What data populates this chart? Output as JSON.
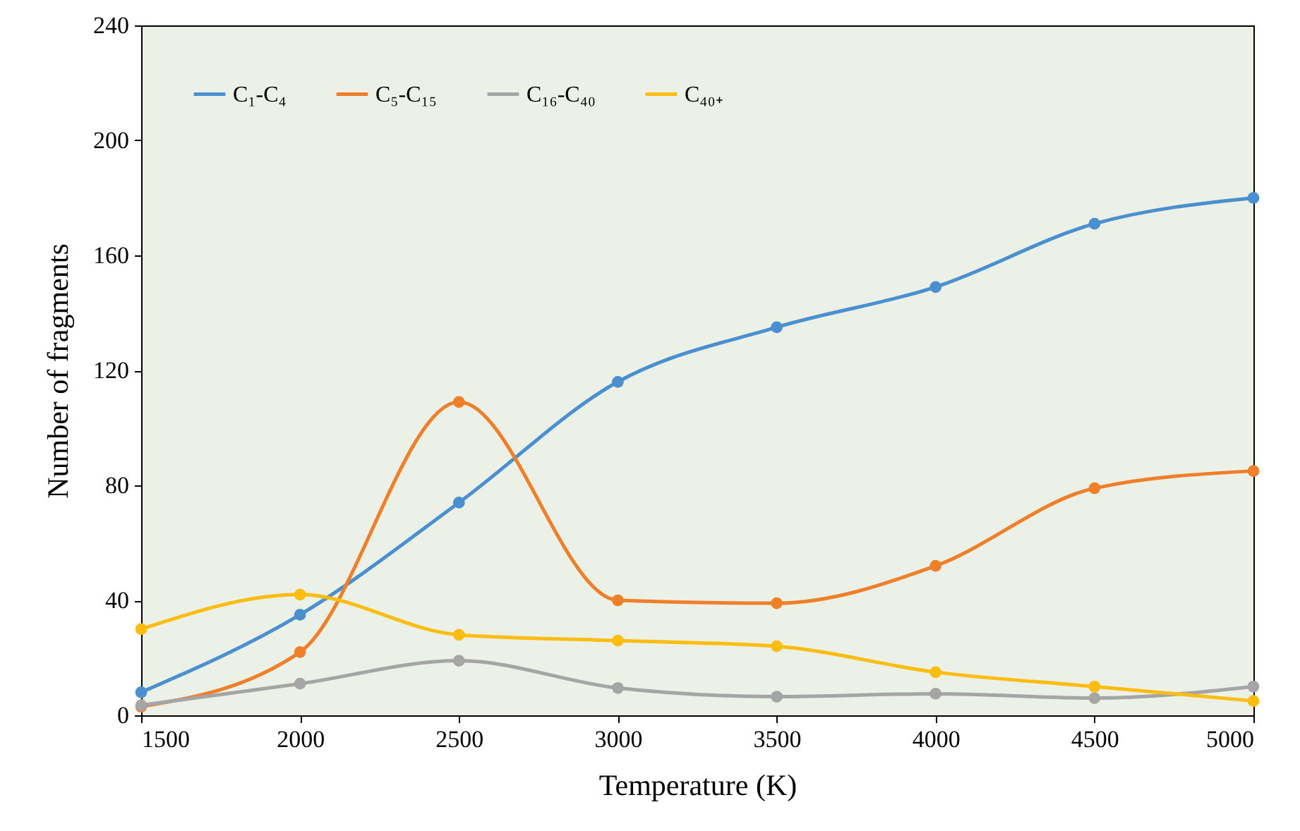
{
  "chart_data": {
    "type": "line",
    "xlabel": "Temperature (K)",
    "ylabel": "Number of fragments",
    "x": [
      1500,
      2000,
      2500,
      3000,
      3500,
      4000,
      4500,
      5000
    ],
    "series": [
      {
        "name": "C₁-C₄",
        "color": "#4a8fd0",
        "values": [
          8,
          35,
          74,
          116,
          135,
          149,
          171,
          180
        ]
      },
      {
        "name": "C₅-C₁₅",
        "color": "#f07f2a",
        "values": [
          3,
          22,
          109,
          40,
          39,
          52,
          79,
          85
        ]
      },
      {
        "name": "C₁₆-C₄₀",
        "color": "#a5a5a5",
        "values": [
          3.5,
          11,
          19,
          9.5,
          6.5,
          7.5,
          6,
          10
        ]
      },
      {
        "name": "C₄₀₊",
        "color": "#fdbd10",
        "values": [
          30,
          42,
          28,
          26,
          24,
          15,
          10,
          5
        ]
      }
    ],
    "xlim": [
      1500,
      5000
    ],
    "xticks": [
      1500,
      2000,
      2500,
      3000,
      3500,
      4000,
      4500,
      5000
    ],
    "ylim": [
      0,
      240
    ],
    "yticks": [
      0,
      40,
      80,
      120,
      160,
      200,
      240
    ],
    "grid": false,
    "legend": "top left",
    "marker": "circle",
    "line_style": "solid"
  }
}
